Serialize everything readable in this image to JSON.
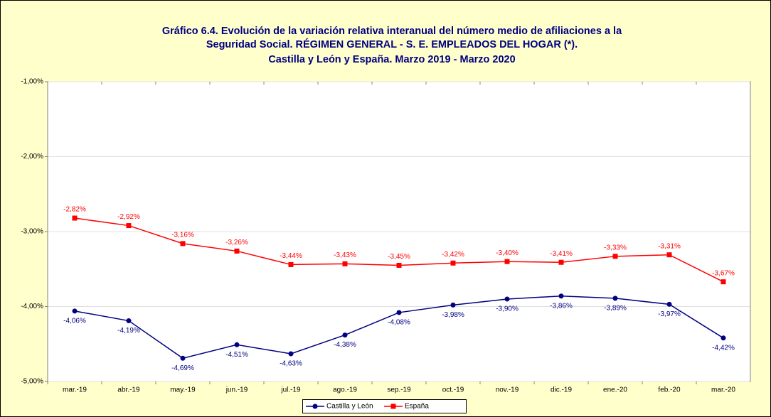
{
  "chart_data": {
    "type": "line",
    "title": [
      "Gráfico 6.4. Evolución de la variación relativa interanual del número medio de afiliaciones a la",
      "Seguridad Social. RÉGIMEN GENERAL - S. E. EMPLEADOS DEL HOGAR (*).",
      "Castilla y León y España. Marzo 2019 - Marzo 2020"
    ],
    "categories": [
      "mar.-19",
      "abr.-19",
      "may.-19",
      "jun.-19",
      "jul.-19",
      "ago.-19",
      "sep.-19",
      "oct.-19",
      "nov.-19",
      "dic.-19",
      "ene.-20",
      "feb.-20",
      "mar.-20"
    ],
    "series": [
      {
        "name": "Castilla y León",
        "color": "#000080",
        "marker": "circle",
        "values": [
          -4.06,
          -4.19,
          -4.69,
          -4.51,
          -4.63,
          -4.38,
          -4.08,
          -3.98,
          -3.9,
          -3.86,
          -3.89,
          -3.97,
          -4.42
        ],
        "value_labels": [
          "-4,06%",
          "-4,19%",
          "-4,69%",
          "-4,51%",
          "-4,63%",
          "-4,38%",
          "-4,08%",
          "-3,98%",
          "-3,90%",
          "-3,86%",
          "-3,89%",
          "-3,97%",
          "-4,42%"
        ]
      },
      {
        "name": "España",
        "color": "#ff0000",
        "marker": "square",
        "values": [
          -2.82,
          -2.92,
          -3.16,
          -3.26,
          -3.44,
          -3.43,
          -3.45,
          -3.42,
          -3.4,
          -3.41,
          -3.33,
          -3.31,
          -3.67
        ],
        "value_labels": [
          "-2,82%",
          "-2,92%",
          "-3,16%",
          "-3,26%",
          "-3,44%",
          "-3,43%",
          "-3,45%",
          "-3,42%",
          "-3,40%",
          "-3,41%",
          "-3,33%",
          "-3,31%",
          "-3,67%"
        ]
      }
    ],
    "ylim": [
      -5,
      -1
    ],
    "yticks": [
      {
        "value": -5,
        "label": "-5,00%"
      },
      {
        "value": -4,
        "label": "-4,00%"
      },
      {
        "value": -3,
        "label": "-3,00%"
      },
      {
        "value": -2,
        "label": "-2,00%"
      },
      {
        "value": -1,
        "label": "-1,00%"
      }
    ],
    "grid": true,
    "legend": "bottom"
  }
}
